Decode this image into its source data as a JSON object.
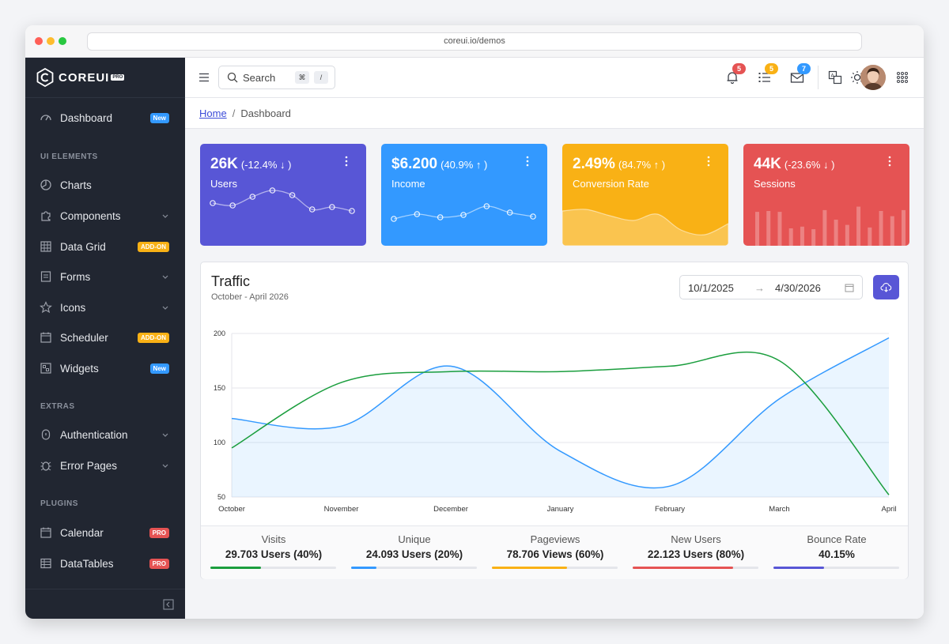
{
  "browser": {
    "url": "coreui.io/demos"
  },
  "brand": {
    "name": "COREUI",
    "badge": "PRO"
  },
  "sidebar": {
    "items": [
      {
        "label": "Dashboard",
        "badge": "New",
        "icon": "speedometer-icon"
      },
      {
        "label": "Charts",
        "icon": "chart-pie-icon"
      },
      {
        "label": "Components",
        "icon": "puzzle-icon"
      },
      {
        "label": "Data Grid",
        "badge": "ADD-ON",
        "icon": "grid-icon"
      },
      {
        "label": "Forms",
        "icon": "notes-icon"
      },
      {
        "label": "Icons",
        "icon": "star-icon"
      },
      {
        "label": "Scheduler",
        "badge": "ADD-ON",
        "icon": "calendar-icon"
      },
      {
        "label": "Widgets",
        "badge": "New",
        "icon": "widgets-icon"
      },
      {
        "label": "Authentication",
        "icon": "lock-icon"
      },
      {
        "label": "Error Pages",
        "icon": "bug-icon"
      },
      {
        "label": "Calendar",
        "badge": "PRO",
        "icon": "calendar-icon"
      },
      {
        "label": "DataTables",
        "badge": "PRO",
        "icon": "spreadsheet-icon"
      }
    ],
    "sections": {
      "ui": "UI ELEMENTS",
      "extras": "EXTRAS",
      "plugins": "PLUGINS"
    }
  },
  "header": {
    "search_label": "Search",
    "search_kbd": [
      "⌘",
      "/"
    ],
    "notifications_count": "5",
    "tasks_count": "5",
    "messages_count": "7"
  },
  "breadcrumb": {
    "home": "Home",
    "current": "Dashboard"
  },
  "stats": [
    {
      "value": "26K",
      "change": "(-12.4% ↓ )",
      "label": "Users",
      "color": "#5856d6"
    },
    {
      "value": "$6.200",
      "change": "(40.9% ↑ )",
      "label": "Income",
      "color": "#3399ff"
    },
    {
      "value": "2.49%",
      "change": "(84.7% ↑ )",
      "label": "Conversion Rate",
      "color": "#f9b115"
    },
    {
      "value": "44K",
      "change": "(-23.6% ↓ )",
      "label": "Sessions",
      "color": "#e55353"
    }
  ],
  "traffic": {
    "title": "Traffic",
    "subtitle": "October - April 2026",
    "date_from": "10/1/2025",
    "date_to": "4/30/2026",
    "summary": [
      {
        "label": "Visits",
        "value": "29.703 Users (40%)",
        "percent": 40,
        "color": "#1b9e3e"
      },
      {
        "label": "Unique",
        "value": "24.093 Users (20%)",
        "percent": 20,
        "color": "#3399ff"
      },
      {
        "label": "Pageviews",
        "value": "78.706 Views (60%)",
        "percent": 60,
        "color": "#f9b115"
      },
      {
        "label": "New Users",
        "value": "22.123 Users (80%)",
        "percent": 80,
        "color": "#e55353"
      },
      {
        "label": "Bounce Rate",
        "value": "40.15%",
        "percent": 40,
        "color": "#5856d6"
      }
    ]
  },
  "chart_data": {
    "type": "line",
    "categories": [
      "October",
      "November",
      "December",
      "January",
      "February",
      "March",
      "April"
    ],
    "ylim": [
      50,
      200
    ],
    "yticks": [
      50,
      100,
      150,
      200
    ],
    "grid": true,
    "series": [
      {
        "values": [
          122,
          115,
          170,
          92,
          60,
          140,
          196
        ],
        "color": "#3399ff",
        "fill": true
      },
      {
        "values": [
          95,
          155,
          165,
          165,
          170,
          175,
          52
        ],
        "color": "#1b9e3e",
        "fill": false
      }
    ]
  },
  "sparklines": {
    "users": [
      60,
      57,
      68,
      76,
      70,
      52,
      55,
      50
    ],
    "income": [
      40,
      46,
      42,
      45,
      56,
      48,
      43
    ],
    "conversion": [
      72,
      74,
      66,
      60,
      68,
      48,
      42,
      56
    ],
    "sessions": [
      78,
      80,
      78,
      40,
      44,
      38,
      82,
      60,
      48,
      90,
      42,
      80,
      68,
      82
    ]
  }
}
